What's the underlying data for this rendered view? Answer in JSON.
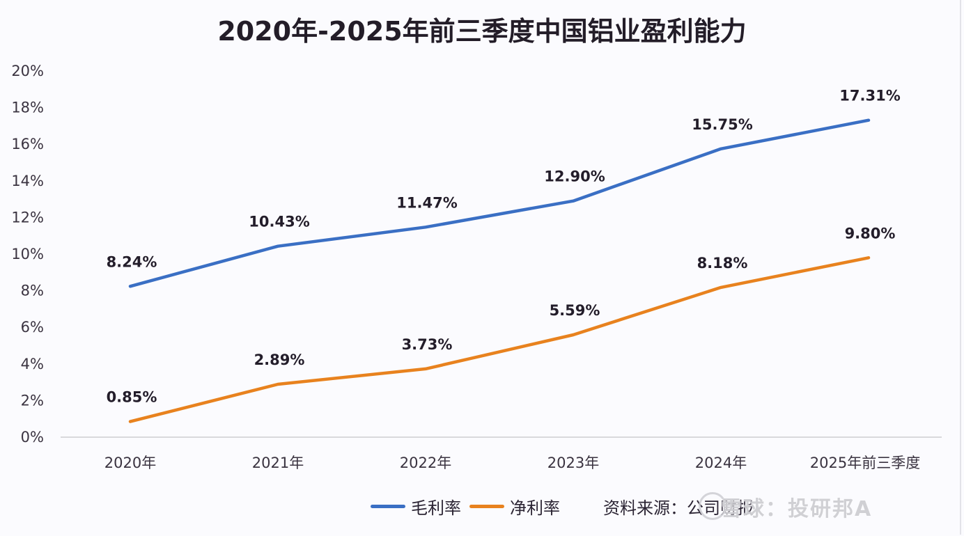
{
  "chart_data": {
    "type": "line",
    "title": "2020年-2025年前三季度中国铝业盈利能力",
    "xlabel": "",
    "ylabel": "",
    "categories": [
      "2020年",
      "2021年",
      "2022年",
      "2023年",
      "2024年",
      "2025年前三季度"
    ],
    "y_ticks": [
      "0%",
      "2%",
      "4%",
      "6%",
      "8%",
      "10%",
      "12%",
      "14%",
      "16%",
      "18%",
      "20%"
    ],
    "ylim": [
      0,
      20
    ],
    "grid": false,
    "legend_position": "bottom",
    "series": [
      {
        "name": "毛利率",
        "color": "#3a6fc4",
        "values": [
          8.24,
          10.43,
          11.47,
          12.9,
          15.75,
          17.31
        ],
        "labels": [
          "8.24%",
          "10.43%",
          "11.47%",
          "12.90%",
          "15.75%",
          "17.31%"
        ]
      },
      {
        "name": "净利率",
        "color": "#e8821e",
        "values": [
          0.85,
          2.89,
          3.73,
          5.59,
          8.18,
          9.8
        ],
        "labels": [
          "0.85%",
          "2.89%",
          "3.73%",
          "5.59%",
          "8.18%",
          "9.80%"
        ]
      }
    ]
  },
  "legend": {
    "items": [
      {
        "label": "毛利率",
        "color": "#3a6fc4"
      },
      {
        "label": "净利率",
        "color": "#e8821e"
      }
    ],
    "source": "资料来源：公司财报"
  },
  "watermark": "雪球：投研邦A"
}
